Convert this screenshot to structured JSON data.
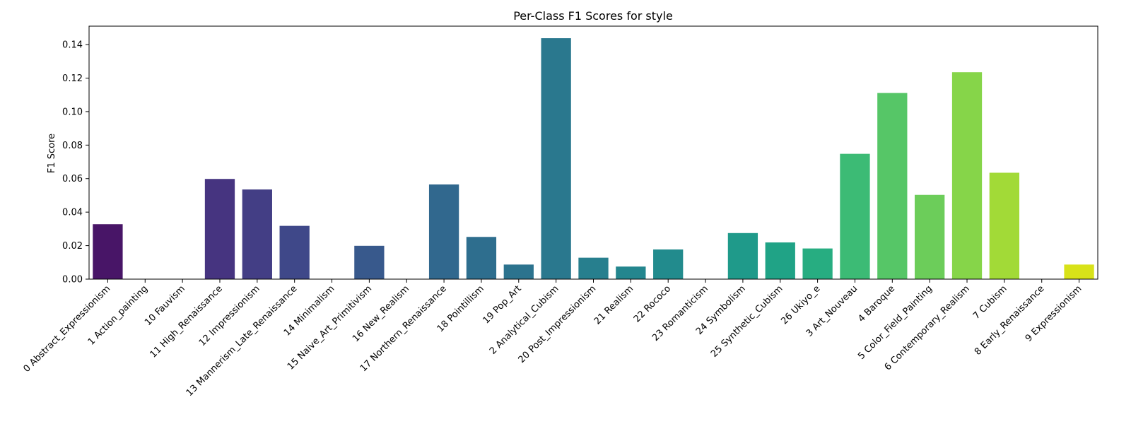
{
  "chart_data": {
    "type": "bar",
    "title": "Per-Class F1 Scores for style",
    "xlabel": "",
    "ylabel": "F1 Score",
    "ylim": [
      0,
      0.151
    ],
    "yticks": [
      "0.00",
      "0.02",
      "0.04",
      "0.06",
      "0.08",
      "0.10",
      "0.12",
      "0.14"
    ],
    "grid": false,
    "colormap": "viridis",
    "categories": [
      "0 Abstract_Expressionism",
      "1 Action_painting",
      "10 Fauvism",
      "11 High_Renaissance",
      "12 Impressionism",
      "13 Mannerism_Late_Renaissance",
      "14 Minimalism",
      "15 Naive_Art_Primitivism",
      "16 New_Realism",
      "17 Northern_Renaissance",
      "18 Pointillism",
      "19 Pop_Art",
      "2 Analytical_Cubism",
      "20 Post_Impressionism",
      "21 Realism",
      "22 Rococo",
      "23 Romanticism",
      "24 Symbolism",
      "25 Synthetic_Cubism",
      "26 Ukiyo_e",
      "3 Art_Nouveau",
      "4 Baroque",
      "5 Color_Field_Painting",
      "6 Contemporary_Realism",
      "7 Cubism",
      "8 Early_Renaissance",
      "9 Expressionism"
    ],
    "values": [
      0.0328,
      0,
      0,
      0.0598,
      0.0535,
      0.0318,
      0,
      0.0199,
      0,
      0.0565,
      0.0252,
      0.0087,
      0.1438,
      0.0128,
      0.0075,
      0.0177,
      0,
      0.0275,
      0.0219,
      0.0183,
      0.0748,
      0.1111,
      0.0503,
      0.1235,
      0.0635,
      0,
      0.0087
    ],
    "colors": [
      "#481567",
      "#481c6e",
      "#472d7b",
      "#463480",
      "#433e85",
      "#3f4889",
      "#3c4f8a",
      "#38598c",
      "#355f8d",
      "#31688e",
      "#2e6e8e",
      "#2c738e",
      "#2a788e",
      "#277f8e",
      "#24868e",
      "#228b8d",
      "#20928c",
      "#1f9a8a",
      "#20a386",
      "#27ad81",
      "#3cbb75",
      "#56c667",
      "#6ccd5a",
      "#86d549",
      "#a2da37",
      "#c2df23",
      "#d8e219"
    ]
  }
}
